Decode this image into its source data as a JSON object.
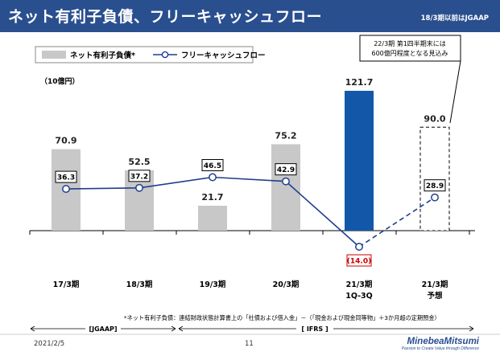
{
  "header": {
    "title": "ネット有利子負債、フリーキャッシュフロー",
    "gaap_note": "18/3期以前はJGAAP"
  },
  "colors": {
    "header_bg": "#2a4f8f",
    "bar_gray": "#c8c8c8",
    "bar_blue": "#1358a8",
    "line_blue": "#1f3f8f",
    "negative_red": "#cc0000"
  },
  "chart_data": {
    "type": "bar",
    "unit_label": "（10億円）",
    "categories": [
      "17/3期",
      "18/3期",
      "19/3期",
      "20/3期",
      "21/3期\n1Q-3Q",
      "21/3期\n予想"
    ],
    "series": [
      {
        "name": "ネット有利子負債",
        "legend_suffix": "*",
        "type": "bar",
        "values": [
          70.9,
          52.5,
          21.7,
          75.2,
          121.7,
          90.0
        ],
        "labels": [
          "70.9",
          "52.5",
          "21.7",
          "75.2",
          "121.7",
          "90.0"
        ]
      },
      {
        "name": "フリーキャッシュフロー",
        "type": "line",
        "values": [
          36.3,
          37.2,
          46.5,
          42.9,
          -14.0,
          28.9
        ],
        "labels": [
          "36.3",
          "37.2",
          "46.5",
          "42.9",
          "(14.0)",
          "28.9"
        ]
      }
    ],
    "ylim": [
      -14,
      125
    ],
    "grid": false,
    "legend": "top-left",
    "callout": "22/3期 第1四半期末には\n600億円程度となる見込み",
    "footnote": "*ネット有利子負債：連結財政状態計算書上の「社債および借入金」－（「現金および現金同等物」＋3か月超の定期預金）",
    "periods": [
      {
        "label": "[JGAAP]",
        "categories": [
          0,
          1
        ]
      },
      {
        "label": "[ IFRS ]",
        "categories": [
          2,
          5
        ]
      }
    ]
  },
  "footer": {
    "date": "2021/2/5",
    "page": "11",
    "brand_name": "MinebeaMitsumi",
    "brand_tagline": "Passion to Create Value through Difference"
  }
}
